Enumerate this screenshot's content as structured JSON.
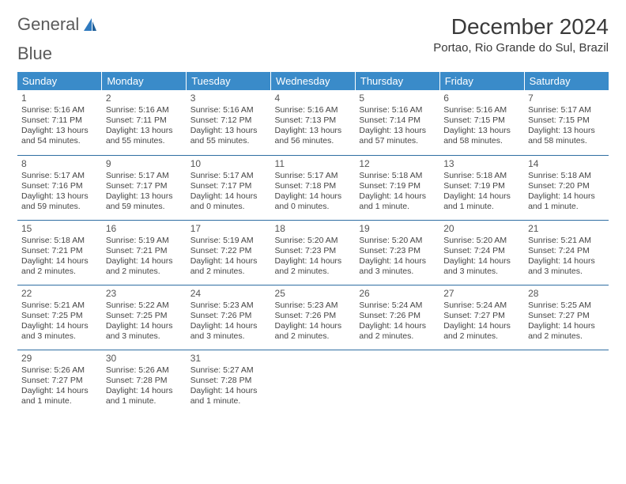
{
  "brand": {
    "part1": "General",
    "part2": "Blue"
  },
  "title": "December 2024",
  "location": "Portao, Rio Grande do Sul, Brazil",
  "colors": {
    "header_bg": "#3a8bc9",
    "header_text": "#ffffff",
    "row_border": "#2f6fa3",
    "body_text": "#454545",
    "brand_gray": "#5a5a5a",
    "brand_blue": "#2f7abf",
    "page_bg": "#ffffff"
  },
  "day_headers": [
    "Sunday",
    "Monday",
    "Tuesday",
    "Wednesday",
    "Thursday",
    "Friday",
    "Saturday"
  ],
  "weeks": [
    [
      {
        "n": "1",
        "sr": "Sunrise: 5:16 AM",
        "ss": "Sunset: 7:11 PM",
        "dl": "Daylight: 13 hours and 54 minutes."
      },
      {
        "n": "2",
        "sr": "Sunrise: 5:16 AM",
        "ss": "Sunset: 7:11 PM",
        "dl": "Daylight: 13 hours and 55 minutes."
      },
      {
        "n": "3",
        "sr": "Sunrise: 5:16 AM",
        "ss": "Sunset: 7:12 PM",
        "dl": "Daylight: 13 hours and 55 minutes."
      },
      {
        "n": "4",
        "sr": "Sunrise: 5:16 AM",
        "ss": "Sunset: 7:13 PM",
        "dl": "Daylight: 13 hours and 56 minutes."
      },
      {
        "n": "5",
        "sr": "Sunrise: 5:16 AM",
        "ss": "Sunset: 7:14 PM",
        "dl": "Daylight: 13 hours and 57 minutes."
      },
      {
        "n": "6",
        "sr": "Sunrise: 5:16 AM",
        "ss": "Sunset: 7:15 PM",
        "dl": "Daylight: 13 hours and 58 minutes."
      },
      {
        "n": "7",
        "sr": "Sunrise: 5:17 AM",
        "ss": "Sunset: 7:15 PM",
        "dl": "Daylight: 13 hours and 58 minutes."
      }
    ],
    [
      {
        "n": "8",
        "sr": "Sunrise: 5:17 AM",
        "ss": "Sunset: 7:16 PM",
        "dl": "Daylight: 13 hours and 59 minutes."
      },
      {
        "n": "9",
        "sr": "Sunrise: 5:17 AM",
        "ss": "Sunset: 7:17 PM",
        "dl": "Daylight: 13 hours and 59 minutes."
      },
      {
        "n": "10",
        "sr": "Sunrise: 5:17 AM",
        "ss": "Sunset: 7:17 PM",
        "dl": "Daylight: 14 hours and 0 minutes."
      },
      {
        "n": "11",
        "sr": "Sunrise: 5:17 AM",
        "ss": "Sunset: 7:18 PM",
        "dl": "Daylight: 14 hours and 0 minutes."
      },
      {
        "n": "12",
        "sr": "Sunrise: 5:18 AM",
        "ss": "Sunset: 7:19 PM",
        "dl": "Daylight: 14 hours and 1 minute."
      },
      {
        "n": "13",
        "sr": "Sunrise: 5:18 AM",
        "ss": "Sunset: 7:19 PM",
        "dl": "Daylight: 14 hours and 1 minute."
      },
      {
        "n": "14",
        "sr": "Sunrise: 5:18 AM",
        "ss": "Sunset: 7:20 PM",
        "dl": "Daylight: 14 hours and 1 minute."
      }
    ],
    [
      {
        "n": "15",
        "sr": "Sunrise: 5:18 AM",
        "ss": "Sunset: 7:21 PM",
        "dl": "Daylight: 14 hours and 2 minutes."
      },
      {
        "n": "16",
        "sr": "Sunrise: 5:19 AM",
        "ss": "Sunset: 7:21 PM",
        "dl": "Daylight: 14 hours and 2 minutes."
      },
      {
        "n": "17",
        "sr": "Sunrise: 5:19 AM",
        "ss": "Sunset: 7:22 PM",
        "dl": "Daylight: 14 hours and 2 minutes."
      },
      {
        "n": "18",
        "sr": "Sunrise: 5:20 AM",
        "ss": "Sunset: 7:23 PM",
        "dl": "Daylight: 14 hours and 2 minutes."
      },
      {
        "n": "19",
        "sr": "Sunrise: 5:20 AM",
        "ss": "Sunset: 7:23 PM",
        "dl": "Daylight: 14 hours and 3 minutes."
      },
      {
        "n": "20",
        "sr": "Sunrise: 5:20 AM",
        "ss": "Sunset: 7:24 PM",
        "dl": "Daylight: 14 hours and 3 minutes."
      },
      {
        "n": "21",
        "sr": "Sunrise: 5:21 AM",
        "ss": "Sunset: 7:24 PM",
        "dl": "Daylight: 14 hours and 3 minutes."
      }
    ],
    [
      {
        "n": "22",
        "sr": "Sunrise: 5:21 AM",
        "ss": "Sunset: 7:25 PM",
        "dl": "Daylight: 14 hours and 3 minutes."
      },
      {
        "n": "23",
        "sr": "Sunrise: 5:22 AM",
        "ss": "Sunset: 7:25 PM",
        "dl": "Daylight: 14 hours and 3 minutes."
      },
      {
        "n": "24",
        "sr": "Sunrise: 5:23 AM",
        "ss": "Sunset: 7:26 PM",
        "dl": "Daylight: 14 hours and 3 minutes."
      },
      {
        "n": "25",
        "sr": "Sunrise: 5:23 AM",
        "ss": "Sunset: 7:26 PM",
        "dl": "Daylight: 14 hours and 2 minutes."
      },
      {
        "n": "26",
        "sr": "Sunrise: 5:24 AM",
        "ss": "Sunset: 7:26 PM",
        "dl": "Daylight: 14 hours and 2 minutes."
      },
      {
        "n": "27",
        "sr": "Sunrise: 5:24 AM",
        "ss": "Sunset: 7:27 PM",
        "dl": "Daylight: 14 hours and 2 minutes."
      },
      {
        "n": "28",
        "sr": "Sunrise: 5:25 AM",
        "ss": "Sunset: 7:27 PM",
        "dl": "Daylight: 14 hours and 2 minutes."
      }
    ],
    [
      {
        "n": "29",
        "sr": "Sunrise: 5:26 AM",
        "ss": "Sunset: 7:27 PM",
        "dl": "Daylight: 14 hours and 1 minute."
      },
      {
        "n": "30",
        "sr": "Sunrise: 5:26 AM",
        "ss": "Sunset: 7:28 PM",
        "dl": "Daylight: 14 hours and 1 minute."
      },
      {
        "n": "31",
        "sr": "Sunrise: 5:27 AM",
        "ss": "Sunset: 7:28 PM",
        "dl": "Daylight: 14 hours and 1 minute."
      },
      null,
      null,
      null,
      null
    ]
  ]
}
